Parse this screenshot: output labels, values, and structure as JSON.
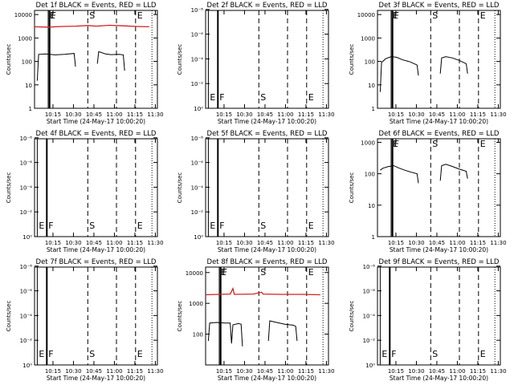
{
  "chart_data": [
    {
      "type": "line",
      "title": "Det 1f BLACK = Events, RED = LLD",
      "xlabel": "Start Time (24-May-17 10:00:20)",
      "ylabel": "Counts/sec",
      "x_ticks": [
        "10:15",
        "10:30",
        "10:45",
        "11:00",
        "11:15",
        "11:30"
      ],
      "xlim": [
        0,
        90
      ],
      "scale": "log",
      "ylim": [
        1,
        15000
      ],
      "y_ticks": [
        "1",
        "10",
        "100",
        "1000",
        "10000"
      ],
      "y_tick_values": [
        1,
        10,
        100,
        1000,
        10000
      ],
      "markers": [
        {
          "label": "E",
          "x": 10,
          "style": "solid",
          "pos": "top"
        },
        {
          "label": "F",
          "x": 11,
          "style": "solid",
          "pos": "top"
        },
        {
          "label": "S",
          "x": 39,
          "style": "dashed",
          "pos": "top"
        },
        {
          "label": "",
          "x": 60,
          "style": "dashed",
          "pos": "top"
        },
        {
          "label": "E",
          "x": 74,
          "style": "dashed",
          "pos": "top"
        },
        {
          "label": "",
          "x": 86,
          "style": "dotted",
          "pos": "top"
        }
      ],
      "series": [
        {
          "color": "#d42020",
          "segments": [
            [
              [
                0,
                3000
              ],
              [
                10,
                2900
              ],
              [
                20,
                3100
              ],
              [
                30,
                3200
              ],
              [
                39,
                3400
              ],
              [
                45,
                3200
              ],
              [
                55,
                3500
              ],
              [
                65,
                3300
              ],
              [
                75,
                3100
              ],
              [
                84,
                3000
              ]
            ]
          ]
        },
        {
          "color": "#000000",
          "segments": [
            [
              [
                2,
                15
              ],
              [
                3,
                200
              ],
              [
                8,
                210
              ],
              [
                15,
                190
              ],
              [
                22,
                200
              ],
              [
                29,
                220
              ],
              [
                30,
                60
              ]
            ],
            [
              [
                46,
                80
              ],
              [
                47,
                260
              ],
              [
                52,
                210
              ],
              [
                56,
                195
              ],
              [
                62,
                200
              ],
              [
                65,
                190
              ],
              [
                66,
                40
              ]
            ]
          ]
        }
      ]
    },
    {
      "type": "line",
      "title": "Det 2f BLACK = Events, RED = LLD",
      "xlabel": "Start Time (24-May-17 10:00:20)",
      "ylabel": "Counts/sec",
      "x_ticks": [
        "10:15",
        "10:30",
        "10:45",
        "11:00",
        "11:15",
        "11:30"
      ],
      "xlim": [
        0,
        90
      ],
      "scale": "log",
      "ylim": [
        1,
        1.2e-08
      ],
      "y_ticks": [
        "10⁰",
        "10⁻²",
        "10⁻⁴",
        "10⁻⁶",
        "10⁻⁸"
      ],
      "y_tick_values": [
        1,
        0.01,
        0.0001,
        1e-06,
        1e-08
      ],
      "markers": [
        {
          "label": "E",
          "x": 2,
          "style": "solid",
          "pos": "bottom"
        },
        {
          "label": "F",
          "x": 9,
          "style": "solid",
          "pos": "bottom"
        },
        {
          "label": "S",
          "x": 39,
          "style": "dashed",
          "pos": "bottom"
        },
        {
          "label": "",
          "x": 60,
          "style": "dashed",
          "pos": "bottom"
        },
        {
          "label": "E",
          "x": 74,
          "style": "dashed",
          "pos": "bottom"
        },
        {
          "label": "",
          "x": 86,
          "style": "dotted",
          "pos": "bottom"
        }
      ],
      "series": []
    },
    {
      "type": "line",
      "title": "Det 3f BLACK = Events, RED = LLD",
      "xlabel": "Start Time (24-May-17 10:00:20)",
      "ylabel": "Counts/sec",
      "x_ticks": [
        "10:15",
        "10:30",
        "10:45",
        "11:00",
        "11:15",
        "11:30"
      ],
      "xlim": [
        0,
        90
      ],
      "scale": "log",
      "ylim": [
        1,
        15000
      ],
      "y_ticks": [
        "1",
        "10",
        "100",
        "1000",
        "10000"
      ],
      "y_tick_values": [
        1,
        10,
        100,
        1000,
        10000
      ],
      "markers": [
        {
          "label": "E",
          "x": 10,
          "style": "solid",
          "pos": "top"
        },
        {
          "label": "F",
          "x": 11,
          "style": "solid",
          "pos": "top"
        },
        {
          "label": "S",
          "x": 39,
          "style": "dashed",
          "pos": "top"
        },
        {
          "label": "",
          "x": 60,
          "style": "dashed",
          "pos": "top"
        },
        {
          "label": "E",
          "x": 74,
          "style": "dashed",
          "pos": "top"
        },
        {
          "label": "",
          "x": 86,
          "style": "dotted",
          "pos": "top"
        }
      ],
      "series": [
        {
          "color": "#000000",
          "segments": [
            [
              [
                2,
                5
              ],
              [
                3,
                90
              ],
              [
                6,
                130
              ],
              [
                10,
                160
              ],
              [
                14,
                150
              ],
              [
                18,
                120
              ],
              [
                24,
                95
              ],
              [
                29,
                70
              ],
              [
                30,
                25
              ]
            ],
            [
              [
                46,
                30
              ],
              [
                47,
                140
              ],
              [
                50,
                160
              ],
              [
                55,
                140
              ],
              [
                60,
                110
              ],
              [
                65,
                80
              ],
              [
                66,
                30
              ]
            ]
          ]
        }
      ]
    },
    {
      "type": "line",
      "title": "Det 4f BLACK = Events, RED = LLD",
      "xlabel": "Start Time (24-May-17 10:00:20)",
      "ylabel": "Counts/sec",
      "x_ticks": [
        "10:15",
        "10:30",
        "10:45",
        "11:00",
        "11:15",
        "11:30"
      ],
      "xlim": [
        0,
        90
      ],
      "scale": "log",
      "ylim": [
        1,
        1.2e-08
      ],
      "y_ticks": [
        "10⁰",
        "10⁻²",
        "10⁻⁴",
        "10⁻⁶",
        "10⁻⁸"
      ],
      "y_tick_values": [
        1,
        0.01,
        0.0001,
        1e-06,
        1e-08
      ],
      "markers": [
        {
          "label": "E",
          "x": 2,
          "style": "solid",
          "pos": "bottom"
        },
        {
          "label": "F",
          "x": 9,
          "style": "solid",
          "pos": "bottom"
        },
        {
          "label": "S",
          "x": 39,
          "style": "dashed",
          "pos": "bottom"
        },
        {
          "label": "",
          "x": 60,
          "style": "dashed",
          "pos": "bottom"
        },
        {
          "label": "E",
          "x": 74,
          "style": "dashed",
          "pos": "bottom"
        },
        {
          "label": "",
          "x": 86,
          "style": "dotted",
          "pos": "bottom"
        }
      ],
      "series": []
    },
    {
      "type": "line",
      "title": "Det 5f BLACK = Events, RED = LLD",
      "xlabel": "Start Time (24-May-17 10:00:20)",
      "ylabel": "Counts/sec",
      "x_ticks": [
        "10:15",
        "10:30",
        "10:45",
        "11:00",
        "11:15",
        "11:30"
      ],
      "xlim": [
        0,
        90
      ],
      "scale": "log",
      "ylim": [
        1,
        1.2e-08
      ],
      "y_ticks": [
        "10⁰",
        "10⁻²",
        "10⁻⁴",
        "10⁻⁶",
        "10⁻⁸"
      ],
      "y_tick_values": [
        1,
        0.01,
        0.0001,
        1e-06,
        1e-08
      ],
      "markers": [
        {
          "label": "E",
          "x": 2,
          "style": "solid",
          "pos": "bottom"
        },
        {
          "label": "F",
          "x": 9,
          "style": "solid",
          "pos": "bottom"
        },
        {
          "label": "S",
          "x": 39,
          "style": "dashed",
          "pos": "bottom"
        },
        {
          "label": "",
          "x": 60,
          "style": "dashed",
          "pos": "bottom"
        },
        {
          "label": "E",
          "x": 74,
          "style": "dashed",
          "pos": "bottom"
        },
        {
          "label": "",
          "x": 86,
          "style": "dotted",
          "pos": "bottom"
        }
      ],
      "series": []
    },
    {
      "type": "line",
      "title": "Det 6f BLACK = Events, RED = LLD",
      "xlabel": "Start Time (24-May-17 10:00:20)",
      "ylabel": "Counts/sec",
      "x_ticks": [
        "10:15",
        "10:30",
        "10:45",
        "11:00",
        "11:15",
        "11:30"
      ],
      "xlim": [
        0,
        90
      ],
      "scale": "log",
      "ylim": [
        1,
        1300
      ],
      "y_ticks": [
        "1",
        "10",
        "100",
        "1000"
      ],
      "y_tick_values": [
        1,
        10,
        100,
        1000
      ],
      "markers": [
        {
          "label": "E",
          "x": 10,
          "style": "solid",
          "pos": "top"
        },
        {
          "label": "F",
          "x": 11,
          "style": "solid",
          "pos": "top"
        },
        {
          "label": "S",
          "x": 39,
          "style": "dashed",
          "pos": "top"
        },
        {
          "label": "",
          "x": 60,
          "style": "dashed",
          "pos": "top"
        },
        {
          "label": "E",
          "x": 74,
          "style": "dashed",
          "pos": "top"
        },
        {
          "label": "",
          "x": 86,
          "style": "dotted",
          "pos": "top"
        }
      ],
      "series": [
        {
          "color": "#000000",
          "segments": [
            [
              [
                2,
                130
              ],
              [
                4,
                150
              ],
              [
                8,
                170
              ],
              [
                12,
                180
              ],
              [
                16,
                150
              ],
              [
                20,
                130
              ],
              [
                24,
                115
              ],
              [
                29,
                100
              ],
              [
                30,
                50
              ]
            ],
            [
              [
                46,
                60
              ],
              [
                47,
                180
              ],
              [
                50,
                200
              ],
              [
                55,
                170
              ],
              [
                60,
                140
              ],
              [
                65,
                120
              ],
              [
                66,
                70
              ]
            ]
          ]
        }
      ]
    },
    {
      "type": "line",
      "title": "Det 7f BLACK = Events, RED = LLD",
      "xlabel": "Start Time (24-May-17 10:00:20)",
      "ylabel": "Counts/sec",
      "x_ticks": [
        "10:15",
        "10:30",
        "10:45",
        "11:00",
        "11:15",
        "11:30"
      ],
      "xlim": [
        0,
        90
      ],
      "scale": "log",
      "ylim": [
        1,
        1.2e-08
      ],
      "y_ticks": [
        "10⁰",
        "10⁻²",
        "10⁻⁴",
        "10⁻⁶",
        "10⁻⁸"
      ],
      "y_tick_values": [
        1,
        0.01,
        0.0001,
        1e-06,
        1e-08
      ],
      "markers": [
        {
          "label": "E",
          "x": 2,
          "style": "solid",
          "pos": "bottom"
        },
        {
          "label": "F",
          "x": 9,
          "style": "solid",
          "pos": "bottom"
        },
        {
          "label": "S",
          "x": 39,
          "style": "dashed",
          "pos": "bottom"
        },
        {
          "label": "",
          "x": 60,
          "style": "dashed",
          "pos": "bottom"
        },
        {
          "label": "E",
          "x": 74,
          "style": "dashed",
          "pos": "bottom"
        },
        {
          "label": "",
          "x": 86,
          "style": "dotted",
          "pos": "bottom"
        }
      ],
      "series": []
    },
    {
      "type": "line",
      "title": "Det 8f BLACK = Events, RED = LLD",
      "xlabel": "Start Time (24-May-17 10:00:20)",
      "ylabel": "Counts/sec",
      "x_ticks": [
        "10:15",
        "10:30",
        "10:45",
        "11:00",
        "11:15",
        "11:30"
      ],
      "xlim": [
        0,
        90
      ],
      "scale": "log",
      "ylim": [
        10,
        15000
      ],
      "y_ticks": [
        "100",
        "1000",
        "10000"
      ],
      "y_tick_values": [
        100,
        1000,
        10000
      ],
      "markers": [
        {
          "label": "E",
          "x": 10,
          "style": "solid",
          "pos": "top"
        },
        {
          "label": "F",
          "x": 11,
          "style": "solid",
          "pos": "top"
        },
        {
          "label": "S",
          "x": 39,
          "style": "dashed",
          "pos": "top"
        },
        {
          "label": "",
          "x": 60,
          "style": "dashed",
          "pos": "top"
        },
        {
          "label": "E",
          "x": 74,
          "style": "dashed",
          "pos": "top"
        },
        {
          "label": "",
          "x": 86,
          "style": "dotted",
          "pos": "top"
        }
      ],
      "series": [
        {
          "color": "#d42020",
          "segments": [
            [
              [
                0,
                1900
              ],
              [
                10,
                1950
              ],
              [
                18,
                2000
              ],
              [
                20,
                3000
              ],
              [
                21,
                1950
              ],
              [
                35,
                2000
              ],
              [
                41,
                2300
              ],
              [
                42,
                2000
              ],
              [
                55,
                1950
              ],
              [
                70,
                1950
              ],
              [
                84,
                1900
              ]
            ]
          ]
        },
        {
          "color": "#000000",
          "segments": [
            [
              [
                2,
                60
              ],
              [
                3,
                230
              ],
              [
                8,
                240
              ],
              [
                14,
                230
              ],
              [
                18,
                230
              ],
              [
                19,
                50
              ],
              [
                20,
                200
              ],
              [
                24,
                220
              ],
              [
                26,
                210
              ],
              [
                27,
                40
              ]
            ],
            [
              [
                46,
                60
              ],
              [
                47,
                270
              ],
              [
                52,
                240
              ],
              [
                58,
                210
              ],
              [
                64,
                195
              ],
              [
                66,
                180
              ],
              [
                67,
                60
              ]
            ]
          ]
        }
      ]
    },
    {
      "type": "line",
      "title": "Det 9f BLACK = Events, RED = LLD",
      "xlabel": "Start Time (24-May-17 10:00:20)",
      "ylabel": "Counts/sec",
      "x_ticks": [
        "10:15",
        "10:30",
        "10:45",
        "11:00",
        "11:15",
        "11:30"
      ],
      "xlim": [
        0,
        90
      ],
      "scale": "log",
      "ylim": [
        1,
        1.2e-08
      ],
      "y_ticks": [
        "10⁰",
        "10⁻²",
        "10⁻⁴",
        "10⁻⁶",
        "10⁻⁸"
      ],
      "y_tick_values": [
        1,
        0.01,
        0.0001,
        1e-06,
        1e-08
      ],
      "markers": [
        {
          "label": "E",
          "x": 2,
          "style": "solid",
          "pos": "bottom"
        },
        {
          "label": "F",
          "x": 9,
          "style": "solid",
          "pos": "bottom"
        },
        {
          "label": "S",
          "x": 39,
          "style": "dashed",
          "pos": "bottom"
        },
        {
          "label": "",
          "x": 60,
          "style": "dashed",
          "pos": "bottom"
        },
        {
          "label": "E",
          "x": 74,
          "style": "dashed",
          "pos": "bottom"
        },
        {
          "label": "",
          "x": 86,
          "style": "dotted",
          "pos": "bottom"
        }
      ],
      "series": []
    }
  ]
}
